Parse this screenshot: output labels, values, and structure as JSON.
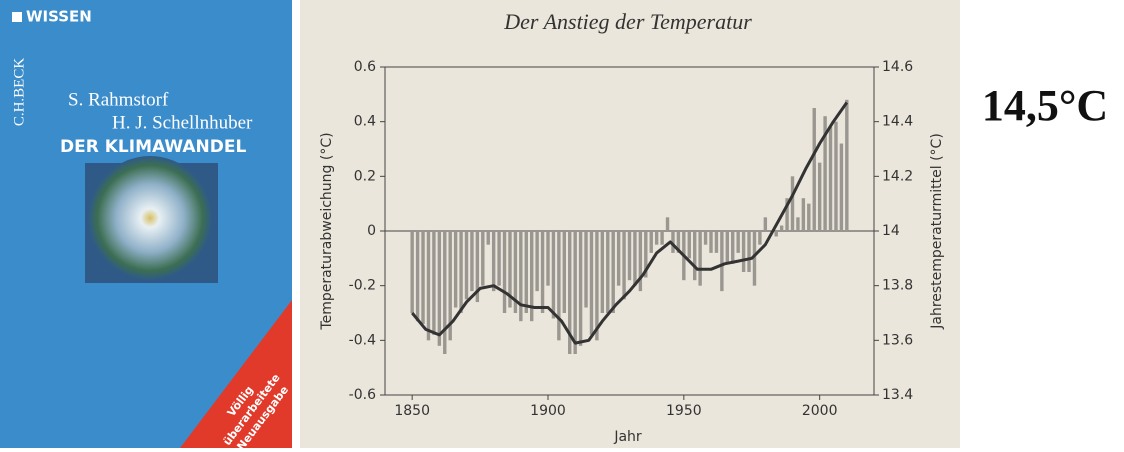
{
  "cover": {
    "series": "WISSEN",
    "publisher": "C.H.BECK",
    "authors": [
      "S. Rahmstorf",
      "H. J. Schellnhuber"
    ],
    "title": "DER KLIMAWANDEL",
    "badge": [
      "Völlig",
      "überarbeitete",
      "Neuausgabe"
    ]
  },
  "chart_data": {
    "type": "bar",
    "title": "Der Anstieg der Temperatur",
    "xlabel": "Jahr",
    "ylabel": "Temperaturabweichung (°C)",
    "y2label": "Jahrestemperaturmittel (°C)",
    "xlim": [
      1840,
      2020
    ],
    "xticks": [
      1850,
      1900,
      1950,
      2000
    ],
    "ylim": [
      -0.6,
      0.6
    ],
    "yticks": [
      0.6,
      0.4,
      0.2,
      0,
      -0.2,
      -0.4,
      -0.6
    ],
    "y2lim": [
      13.4,
      14.6
    ],
    "y2ticks": [
      14.6,
      14.4,
      14.2,
      14,
      13.8,
      13.6,
      13.4
    ],
    "series": [
      {
        "type": "bar",
        "color": "#9a9690",
        "x": [
          1850,
          1852,
          1854,
          1856,
          1858,
          1860,
          1862,
          1864,
          1866,
          1868,
          1870,
          1872,
          1874,
          1876,
          1878,
          1880,
          1882,
          1884,
          1886,
          1888,
          1890,
          1892,
          1894,
          1896,
          1898,
          1900,
          1902,
          1904,
          1906,
          1908,
          1910,
          1912,
          1914,
          1916,
          1918,
          1920,
          1922,
          1924,
          1926,
          1928,
          1930,
          1932,
          1934,
          1936,
          1938,
          1940,
          1942,
          1944,
          1946,
          1948,
          1950,
          1952,
          1954,
          1956,
          1958,
          1960,
          1962,
          1964,
          1966,
          1968,
          1970,
          1972,
          1974,
          1976,
          1978,
          1980,
          1982,
          1984,
          1986,
          1988,
          1990,
          1992,
          1994,
          1996,
          1998,
          2000,
          2002,
          2004,
          2006,
          2008,
          2010
        ],
        "values": [
          -0.3,
          -0.33,
          -0.34,
          -0.4,
          -0.38,
          -0.42,
          -0.45,
          -0.4,
          -0.28,
          -0.3,
          -0.25,
          -0.22,
          -0.26,
          -0.2,
          -0.05,
          -0.22,
          -0.2,
          -0.3,
          -0.28,
          -0.3,
          -0.33,
          -0.3,
          -0.33,
          -0.22,
          -0.3,
          -0.2,
          -0.32,
          -0.4,
          -0.3,
          -0.45,
          -0.45,
          -0.42,
          -0.28,
          -0.38,
          -0.4,
          -0.3,
          -0.3,
          -0.3,
          -0.2,
          -0.25,
          -0.18,
          -0.2,
          -0.22,
          -0.17,
          -0.08,
          -0.05,
          -0.05,
          0.05,
          -0.08,
          -0.08,
          -0.18,
          -0.1,
          -0.18,
          -0.2,
          -0.05,
          -0.08,
          -0.08,
          -0.22,
          -0.12,
          -0.12,
          -0.08,
          -0.15,
          -0.15,
          -0.2,
          -0.05,
          0.05,
          0.0,
          -0.02,
          0.02,
          0.12,
          0.2,
          0.05,
          0.12,
          0.1,
          0.45,
          0.25,
          0.42,
          0.38,
          0.4,
          0.32,
          0.48
        ]
      },
      {
        "type": "line",
        "color": "#333333",
        "x": [
          1850,
          1855,
          1860,
          1865,
          1870,
          1875,
          1880,
          1885,
          1890,
          1895,
          1900,
          1905,
          1910,
          1915,
          1920,
          1925,
          1930,
          1935,
          1940,
          1945,
          1950,
          1955,
          1960,
          1965,
          1970,
          1975,
          1980,
          1985,
          1990,
          1995,
          2000,
          2005,
          2010
        ],
        "values": [
          -0.3,
          -0.36,
          -0.38,
          -0.33,
          -0.26,
          -0.21,
          -0.2,
          -0.23,
          -0.27,
          -0.28,
          -0.28,
          -0.33,
          -0.41,
          -0.4,
          -0.33,
          -0.27,
          -0.22,
          -0.16,
          -0.08,
          -0.04,
          -0.09,
          -0.14,
          -0.14,
          -0.12,
          -0.11,
          -0.1,
          -0.05,
          0.04,
          0.13,
          0.23,
          0.32,
          0.4,
          0.47
        ]
      }
    ]
  },
  "label": "14,5°C"
}
